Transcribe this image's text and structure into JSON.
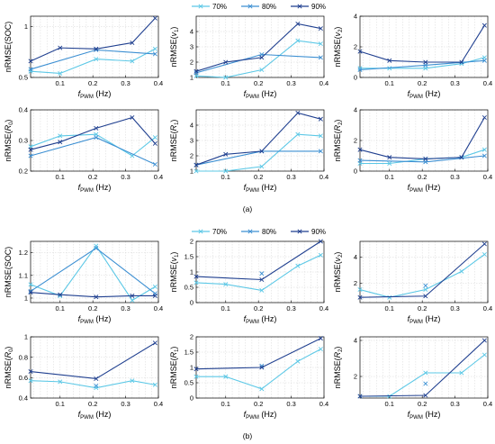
{
  "figure": {
    "series_colors": {
      "70%": "#5cc8e6",
      "80%": "#3c8fd2",
      "90%": "#1f3f8f"
    },
    "legend_labels": [
      "70%",
      "80%",
      "90%"
    ],
    "captions": [
      "(a)",
      "(b)"
    ]
  },
  "chart_data": [
    {
      "type": "line",
      "id": "a1",
      "group": "(a)",
      "xlabel": "f_PWM (Hz)",
      "ylabel": "nRMSE(SOC)",
      "x": [
        0.01,
        0.1,
        0.21,
        0.32,
        0.39
      ],
      "xlim": [
        0.01,
        0.4
      ],
      "xticks": [
        "0.1",
        "0.2",
        "0.3",
        "0.4"
      ],
      "ylim": [
        0.5,
        1.1
      ],
      "yticks": [
        "0.5",
        "1"
      ],
      "ytick_values": [
        0.5,
        1.0
      ],
      "series": [
        {
          "name": "70%",
          "values": [
            0.56,
            0.54,
            0.68,
            0.66,
            0.78
          ]
        },
        {
          "name": "80%",
          "values": [
            0.58,
            null,
            0.77,
            null,
            0.73
          ]
        },
        {
          "name": "90%",
          "values": [
            0.66,
            0.79,
            0.78,
            0.84,
            1.08
          ]
        }
      ]
    },
    {
      "type": "line",
      "id": "a2",
      "group": "(a)",
      "xlabel": "f_PWM (Hz)",
      "ylabel": "nRMSE(v1)",
      "x": [
        0.01,
        0.1,
        0.21,
        0.32,
        0.39
      ],
      "xlim": [
        0.01,
        0.4
      ],
      "xticks": [
        "0.1",
        "0.2",
        "0.3",
        "0.4"
      ],
      "ylim": [
        1,
        5
      ],
      "yticks": [
        "1",
        "2",
        "3",
        "4"
      ],
      "ytick_values": [
        1,
        2,
        3,
        4
      ],
      "series": [
        {
          "name": "70%",
          "values": [
            1.1,
            1.0,
            1.5,
            3.4,
            3.2
          ]
        },
        {
          "name": "80%",
          "values": [
            1.3,
            null,
            2.5,
            null,
            2.3
          ]
        },
        {
          "name": "90%",
          "values": [
            1.4,
            2.0,
            2.3,
            4.5,
            4.2
          ]
        }
      ]
    },
    {
      "type": "line",
      "id": "a3",
      "group": "(a)",
      "xlabel": "f_PWM (Hz)",
      "ylabel": "nRMSE(v2)",
      "x": [
        0.01,
        0.1,
        0.21,
        0.32,
        0.39
      ],
      "xlim": [
        0.01,
        0.4
      ],
      "xticks": [
        "0.1",
        "0.2",
        "0.3",
        "0.4"
      ],
      "ylim": [
        0,
        4
      ],
      "yticks": [
        "0",
        "2",
        "4"
      ],
      "ytick_values": [
        0,
        2,
        4
      ],
      "series": [
        {
          "name": "70%",
          "values": [
            0.6,
            0.6,
            0.6,
            0.9,
            1.3
          ]
        },
        {
          "name": "80%",
          "values": [
            0.5,
            null,
            0.8,
            null,
            1.1
          ]
        },
        {
          "name": "90%",
          "values": [
            1.7,
            1.1,
            1.0,
            1.0,
            3.4
          ]
        }
      ]
    },
    {
      "type": "line",
      "id": "a4",
      "group": "(a)",
      "xlabel": "f_PWM (Hz)",
      "ylabel": "nRMSE(R0)",
      "x": [
        0.01,
        0.1,
        0.21,
        0.32,
        0.39
      ],
      "xlim": [
        0.01,
        0.4
      ],
      "xticks": [
        "0.1",
        "0.2",
        "0.3",
        "0.4"
      ],
      "ylim": [
        0.2,
        0.4
      ],
      "yticks": [
        "0.2",
        "0.3",
        "0.4"
      ],
      "ytick_values": [
        0.2,
        0.3,
        0.4
      ],
      "series": [
        {
          "name": "70%",
          "values": [
            0.28,
            0.315,
            0.32,
            0.25,
            0.31
          ]
        },
        {
          "name": "80%",
          "values": [
            0.25,
            null,
            0.31,
            null,
            0.222
          ]
        },
        {
          "name": "90%",
          "values": [
            0.27,
            0.295,
            0.34,
            0.375,
            0.29
          ]
        }
      ]
    },
    {
      "type": "line",
      "id": "a5",
      "group": "(a)",
      "xlabel": "f_PWM (Hz)",
      "ylabel": "nRMSE(R1)",
      "x": [
        0.01,
        0.1,
        0.21,
        0.32,
        0.39
      ],
      "xlim": [
        0.01,
        0.4
      ],
      "xticks": [
        "0.1",
        "0.2",
        "0.3",
        "0.4"
      ],
      "ylim": [
        1,
        5
      ],
      "yticks": [
        "1",
        "2",
        "3",
        "4"
      ],
      "ytick_values": [
        1,
        2,
        3,
        4
      ],
      "series": [
        {
          "name": "70%",
          "values": [
            1.0,
            1.0,
            1.3,
            3.4,
            3.3
          ]
        },
        {
          "name": "80%",
          "values": [
            1.4,
            null,
            2.3,
            null,
            2.3
          ]
        },
        {
          "name": "90%",
          "values": [
            1.4,
            2.1,
            2.3,
            4.8,
            4.4
          ]
        }
      ]
    },
    {
      "type": "line",
      "id": "a6",
      "group": "(a)",
      "xlabel": "f_PWM (Hz)",
      "ylabel": "nRMSE(R2)",
      "x": [
        0.01,
        0.1,
        0.21,
        0.32,
        0.39
      ],
      "xlim": [
        0.01,
        0.4
      ],
      "xticks": [
        "0.1",
        "0.2",
        "0.3",
        "0.4"
      ],
      "ylim": [
        0,
        4
      ],
      "yticks": [
        "0",
        "2",
        "4"
      ],
      "ytick_values": [
        0,
        2,
        4
      ],
      "series": [
        {
          "name": "70%",
          "values": [
            0.5,
            0.5,
            0.8,
            0.9,
            1.4
          ]
        },
        {
          "name": "80%",
          "values": [
            0.7,
            null,
            0.6,
            null,
            1.0
          ]
        },
        {
          "name": "90%",
          "values": [
            1.4,
            0.9,
            0.8,
            0.9,
            3.5
          ]
        }
      ]
    },
    {
      "type": "line",
      "id": "b1",
      "group": "(b)",
      "xlabel": "f_PWM (Hz)",
      "ylabel": "nRMSE(SOC)",
      "x": [
        0.01,
        0.1,
        0.21,
        0.32,
        0.39
      ],
      "xlim": [
        0.01,
        0.4
      ],
      "xticks": [
        "0.1",
        "0.2",
        "0.3",
        "0.4"
      ],
      "ylim": [
        0.98,
        1.25
      ],
      "yticks": [
        "1",
        "1.1",
        "1.2"
      ],
      "ytick_values": [
        1.0,
        1.1,
        1.2
      ],
      "series": [
        {
          "name": "70%",
          "values": [
            1.06,
            1.01,
            1.23,
            0.99,
            1.05
          ]
        },
        {
          "name": "80%",
          "values": [
            1.03,
            null,
            1.22,
            null,
            1.02
          ]
        },
        {
          "name": "90%",
          "values": [
            1.025,
            1.015,
            1.005,
            1.01,
            1.01
          ]
        }
      ]
    },
    {
      "type": "line",
      "id": "b2",
      "group": "(b)",
      "xlabel": "f_PWM (Hz)",
      "ylabel": "nRMSE(v1)",
      "x": [
        0.01,
        0.1,
        0.21,
        0.32,
        0.39
      ],
      "xlim": [
        0.01,
        0.4
      ],
      "xticks": [
        "0.1",
        "0.2",
        "0.3",
        "0.4"
      ],
      "ylim": [
        0,
        2
      ],
      "yticks": [
        "0",
        "0.5",
        "1",
        "1.5",
        "2"
      ],
      "ytick_values": [
        0,
        0.5,
        1,
        1.5,
        2
      ],
      "series": [
        {
          "name": "70%",
          "values": [
            0.65,
            0.6,
            0.4,
            1.2,
            1.55
          ]
        },
        {
          "name": "80%",
          "values": [
            null,
            null,
            0.95,
            null,
            null
          ]
        },
        {
          "name": "90%",
          "values": [
            0.85,
            null,
            0.75,
            null,
            2.0
          ]
        }
      ]
    },
    {
      "type": "line",
      "id": "b3",
      "group": "(b)",
      "xlabel": "f_PWM (Hz)",
      "ylabel": "nRMSE(v2)",
      "x": [
        0.01,
        0.1,
        0.21,
        0.32,
        0.39
      ],
      "xlim": [
        0.01,
        0.4
      ],
      "xticks": [
        "0.1",
        "0.2",
        "0.3",
        "0.4"
      ],
      "ylim": [
        0.5,
        5.2
      ],
      "yticks": [
        "2",
        "4"
      ],
      "ytick_values": [
        2,
        4
      ],
      "series": [
        {
          "name": "70%",
          "values": [
            1.5,
            0.9,
            1.5,
            2.9,
            4.2
          ]
        },
        {
          "name": "80%",
          "values": [
            null,
            null,
            1.8,
            null,
            null
          ]
        },
        {
          "name": "90%",
          "values": [
            0.9,
            null,
            1.0,
            null,
            5.0
          ]
        }
      ]
    },
    {
      "type": "line",
      "id": "b4",
      "group": "(b)",
      "xlabel": "f_PWM (Hz)",
      "ylabel": "nRMSE(R0)",
      "x": [
        0.01,
        0.1,
        0.21,
        0.32,
        0.39
      ],
      "xlim": [
        0.01,
        0.4
      ],
      "xticks": [
        "0.1",
        "0.2",
        "0.3",
        "0.4"
      ],
      "ylim": [
        0.4,
        1.0
      ],
      "yticks": [
        "0.4",
        "0.6",
        "0.8",
        "1"
      ],
      "ytick_values": [
        0.4,
        0.6,
        0.8,
        1.0
      ],
      "series": [
        {
          "name": "70%",
          "values": [
            0.57,
            0.56,
            0.5,
            0.57,
            0.53
          ]
        },
        {
          "name": "80%",
          "values": [
            null,
            null,
            0.52,
            null,
            null
          ]
        },
        {
          "name": "90%",
          "values": [
            0.66,
            null,
            0.59,
            null,
            0.94
          ]
        }
      ]
    },
    {
      "type": "line",
      "id": "b5",
      "group": "(b)",
      "xlabel": "f_PWM (Hz)",
      "ylabel": "nRMSE(R1)",
      "x": [
        0.01,
        0.1,
        0.21,
        0.32,
        0.39
      ],
      "xlim": [
        0.01,
        0.4
      ],
      "xticks": [
        "0.1",
        "0.2",
        "0.3",
        "0.4"
      ],
      "ylim": [
        0,
        2
      ],
      "yticks": [
        "0",
        "0.5",
        "1",
        "1.5",
        "2"
      ],
      "ytick_values": [
        0,
        0.5,
        1,
        1.5,
        2
      ],
      "series": [
        {
          "name": "70%",
          "values": [
            0.7,
            0.7,
            0.3,
            1.2,
            1.6
          ]
        },
        {
          "name": "80%",
          "values": [
            null,
            null,
            1.05,
            null,
            null
          ]
        },
        {
          "name": "90%",
          "values": [
            0.95,
            null,
            1.0,
            null,
            1.95
          ]
        }
      ]
    },
    {
      "type": "line",
      "id": "b6",
      "group": "(b)",
      "xlabel": "f_PWM (Hz)",
      "ylabel": "nRMSE(R2)",
      "x": [
        0.01,
        0.1,
        0.21,
        0.32,
        0.39
      ],
      "xlim": [
        0.01,
        0.4
      ],
      "xticks": [
        "0.1",
        "0.2",
        "0.3",
        "0.4"
      ],
      "ylim": [
        0.8,
        4.2
      ],
      "yticks": [
        "2",
        "4"
      ],
      "ytick_values": [
        2,
        4
      ],
      "series": [
        {
          "name": "70%",
          "values": [
            0.9,
            0.9,
            2.2,
            2.2,
            3.2
          ]
        },
        {
          "name": "80%",
          "values": [
            null,
            null,
            1.6,
            null,
            null
          ]
        },
        {
          "name": "90%",
          "values": [
            0.9,
            null,
            0.95,
            null,
            4.0
          ]
        }
      ]
    }
  ]
}
